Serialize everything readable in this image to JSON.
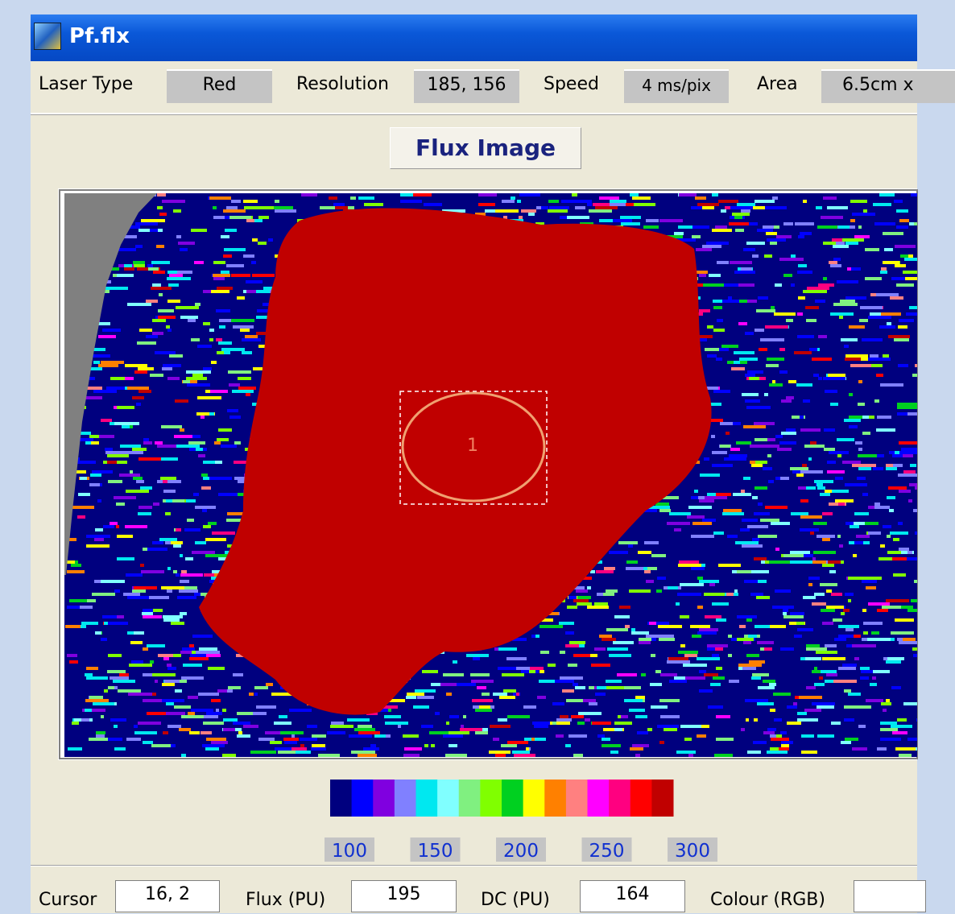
{
  "window": {
    "title": "Pf.flx"
  },
  "toolbar": {
    "laser_type_label": "Laser Type",
    "laser_type": "Red",
    "resolution_label": "Resolution",
    "resolution": "185, 156",
    "speed_label": "Speed",
    "speed": "4 ms/pix",
    "area_label": "Area",
    "area": "6.5cm x"
  },
  "view": {
    "button": "Flux Image",
    "roi_label": "1"
  },
  "colour_scale": {
    "colors": [
      "#00007f",
      "#0000ff",
      "#8000e0",
      "#8080ff",
      "#00e8f0",
      "#80ffff",
      "#80f080",
      "#80ff00",
      "#00d020",
      "#ffff00",
      "#ff8000",
      "#ff8080",
      "#ff00ff",
      "#ff0080",
      "#ff0000",
      "#c00000"
    ],
    "labels": [
      100,
      150,
      200,
      250,
      300
    ]
  },
  "status_bar": {
    "cursor_label": "Cursor",
    "cursor": "16, 2",
    "flux_label": "Flux (PU)",
    "flux": 195,
    "dc_label": "DC (PU)",
    "dc": 164,
    "colour_label": "Colour (RGB)"
  }
}
